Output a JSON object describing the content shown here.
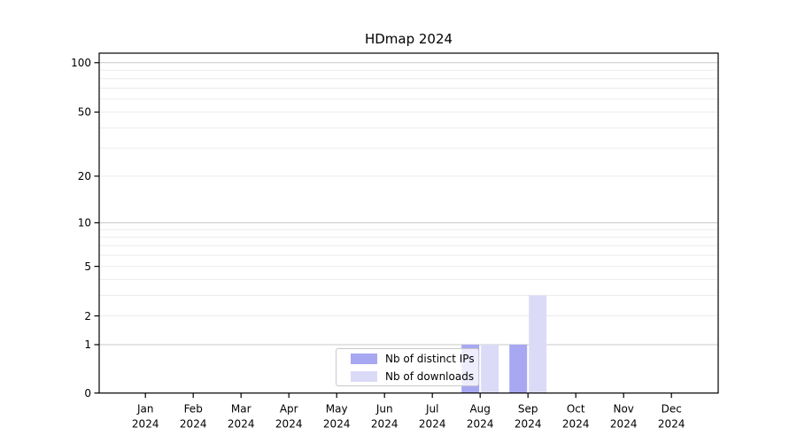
{
  "figure": {
    "title": "HDmap 2024"
  },
  "chart_data": {
    "type": "bar",
    "title": "HDmap 2024",
    "x_categories": [
      "Jan 2024",
      "Feb 2024",
      "Mar 2024",
      "Apr 2024",
      "May 2024",
      "Jun 2024",
      "Jul 2024",
      "Aug 2024",
      "Sep 2024",
      "Oct 2024",
      "Nov 2024",
      "Dec 2024"
    ],
    "series": [
      {
        "name": "Nb of distinct IPs",
        "color": "#a7a7f2",
        "values": [
          0,
          0,
          0,
          0,
          0,
          0,
          0,
          1,
          1,
          0,
          0,
          0
        ]
      },
      {
        "name": "Nb of downloads",
        "color": "#dbdbf8",
        "values": [
          0,
          0,
          0,
          0,
          0,
          0,
          0,
          1,
          3,
          0,
          0,
          0
        ]
      }
    ],
    "y_ticks": [
      0,
      1,
      2,
      5,
      10,
      20,
      50,
      100
    ],
    "y_minor_gridlines": [
      2,
      3,
      4,
      5,
      6,
      7,
      8,
      9,
      20,
      30,
      40,
      50,
      60,
      70,
      80,
      90
    ],
    "y_major_gridlines": [
      1,
      10,
      100
    ],
    "y_scale": "log-like (position proportional to log10(1+value))",
    "ylim": [
      0,
      110
    ],
    "xlabel": "",
    "ylabel": "",
    "grid": true,
    "legend_position": "inside plot, lower center-left, semi-transparent white box"
  }
}
